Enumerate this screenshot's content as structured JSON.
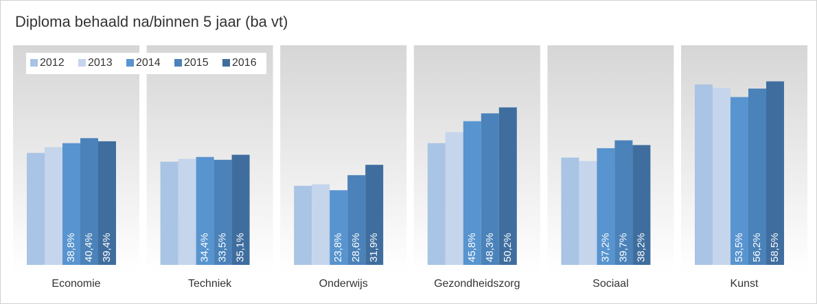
{
  "chart_data": {
    "type": "bar",
    "title": "Diploma behaald na/binnen 5 jaar (ba vt)",
    "categories": [
      "Economie",
      "Techniek",
      "Onderwijs",
      "Gezondheidszorg",
      "Sociaal",
      "Kunst"
    ],
    "series": [
      {
        "name": "2012",
        "color": "#a9c4e4",
        "values": [
          35.7,
          32.9,
          25.2,
          38.8,
          34.2,
          57.5
        ]
      },
      {
        "name": "2013",
        "color": "#c5d5ec",
        "values": [
          37.5,
          33.8,
          25.7,
          42.3,
          33.1,
          56.4
        ]
      },
      {
        "name": "2014",
        "color": "#5894cf",
        "values": [
          38.8,
          34.4,
          23.8,
          45.8,
          37.2,
          53.5
        ],
        "value_labels": [
          "38,8%",
          "34,4%",
          "23,8%",
          "45,8%",
          "37,2%",
          "53,5%"
        ]
      },
      {
        "name": "2015",
        "color": "#4a82b9",
        "values": [
          40.4,
          33.5,
          28.6,
          48.3,
          39.7,
          56.2
        ],
        "value_labels": [
          "40,4%",
          "33,5%",
          "28,6%",
          "48,3%",
          "39,7%",
          "56,2%"
        ]
      },
      {
        "name": "2016",
        "color": "#3f6e9e",
        "values": [
          39.4,
          35.1,
          31.9,
          50.2,
          38.2,
          58.5
        ],
        "value_labels": [
          "39,4%",
          "35,1%",
          "31,9%",
          "50,2%",
          "38,2%",
          "58,5%"
        ]
      }
    ],
    "ylim": [
      0,
      70
    ],
    "legend": "top-left"
  }
}
